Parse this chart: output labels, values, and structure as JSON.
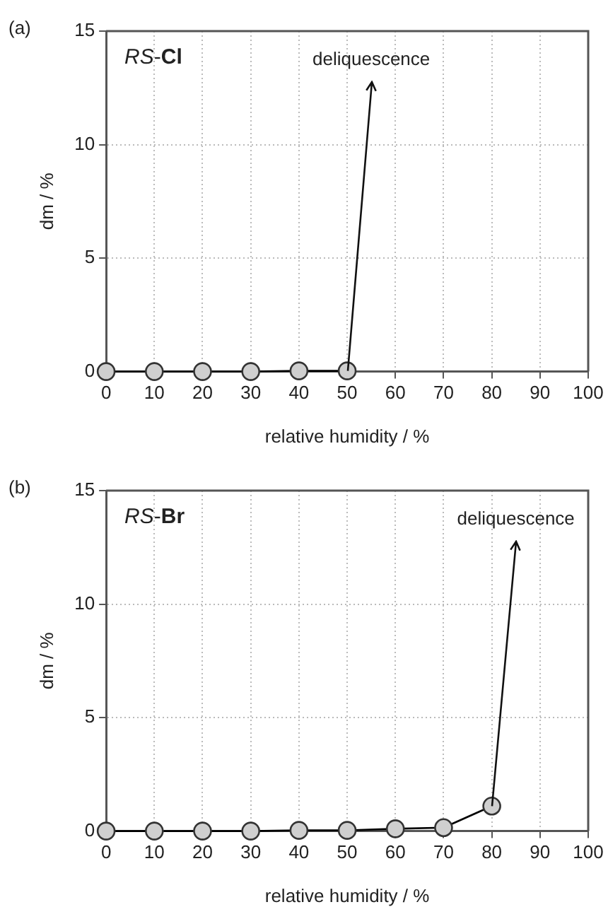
{
  "chart_data": [
    {
      "type": "line",
      "title": "(a)",
      "subtitle": "RS-Cl",
      "xlabel": "relative humidity / %",
      "ylabel": "dm / %",
      "x": [
        0,
        10,
        20,
        30,
        40,
        50
      ],
      "series": [
        {
          "color": "#000000",
          "values": [
            0,
            0,
            0,
            0,
            0.03,
            0.03
          ]
        }
      ],
      "xlim": [
        0,
        100
      ],
      "xticks": [
        0,
        10,
        20,
        30,
        40,
        50,
        60,
        70,
        80,
        90,
        100
      ],
      "ylim": [
        0,
        15
      ],
      "yticks": [
        0,
        5,
        10,
        15
      ],
      "grid": true,
      "marker": "circle",
      "line_style": "solid",
      "annotations": [
        "deliquescence"
      ]
    },
    {
      "type": "line",
      "title": "(b)",
      "subtitle": "RS-Br",
      "xlabel": "relative humidity / %",
      "ylabel": "dm / %",
      "x": [
        0,
        10,
        20,
        30,
        40,
        50,
        60,
        70,
        80
      ],
      "series": [
        {
          "color": "#000000",
          "values": [
            0,
            0,
            0,
            0,
            0.03,
            0.03,
            0.1,
            0.15,
            1.1
          ]
        }
      ],
      "xlim": [
        0,
        100
      ],
      "xticks": [
        0,
        10,
        20,
        30,
        40,
        50,
        60,
        70,
        80,
        90,
        100
      ],
      "ylim": [
        0,
        15
      ],
      "yticks": [
        0,
        5,
        10,
        15
      ],
      "grid": true,
      "marker": "circle",
      "line_style": "solid",
      "annotations": [
        "deliquescence"
      ]
    }
  ]
}
